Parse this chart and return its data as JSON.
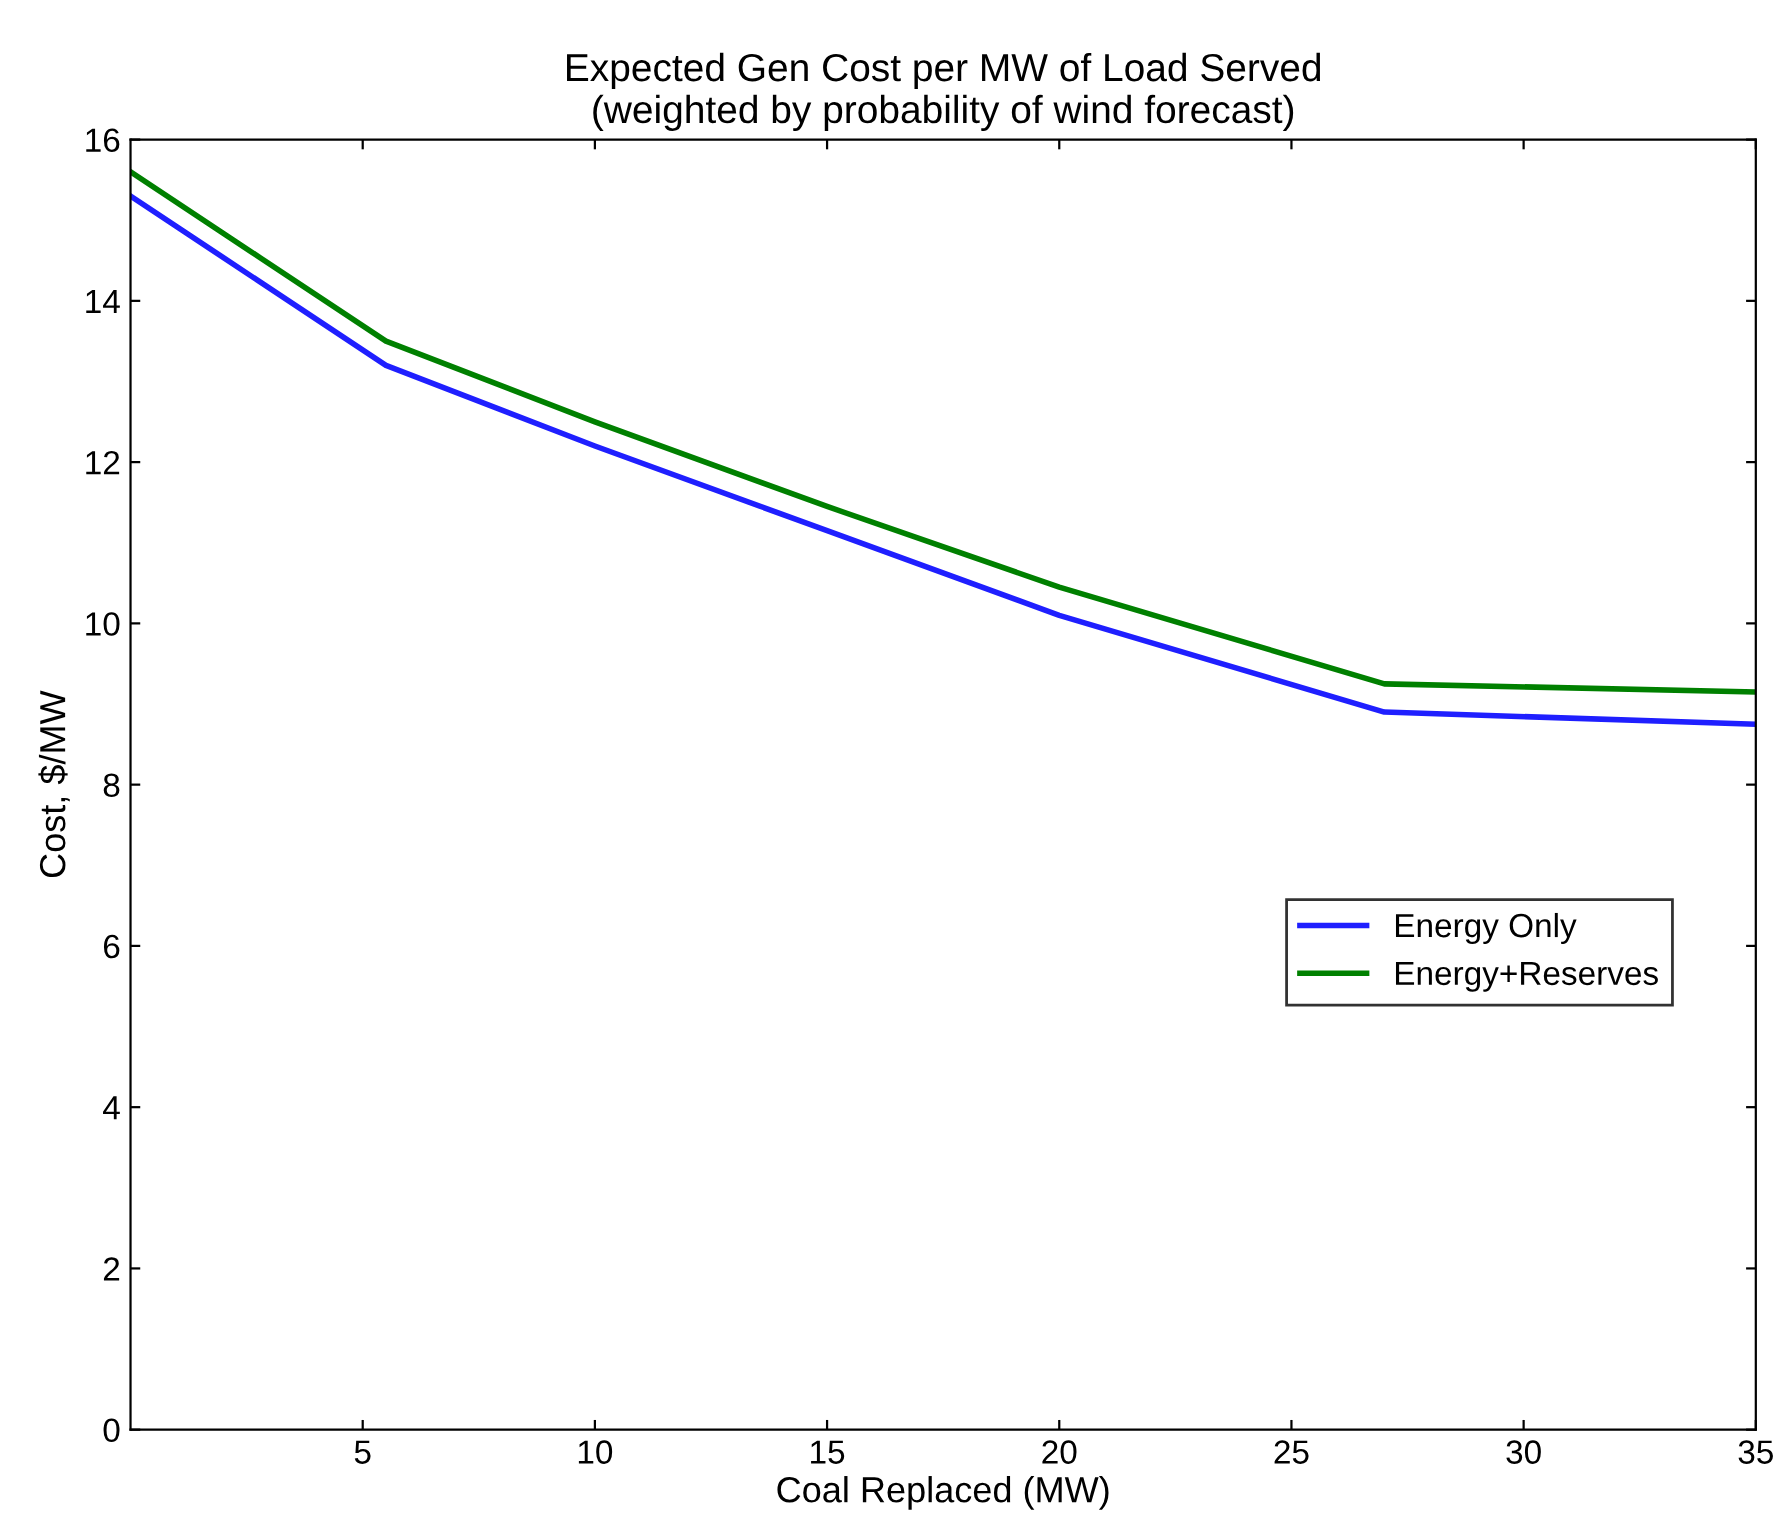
{
  "chart_data": {
    "type": "line",
    "title": "Expected Gen Cost per MW of Load Served\n(weighted by probability of wind forecast)",
    "xlabel": "Coal Replaced (MW)",
    "ylabel": "Cost, $/MW",
    "x": [
      0,
      5.5,
      10,
      15,
      20,
      27,
      35
    ],
    "series": [
      {
        "name": "Energy Only",
        "color": "#1f1fff",
        "values": [
          15.3,
          13.2,
          12.2,
          11.15,
          10.1,
          8.9,
          8.75
        ]
      },
      {
        "name": "Energy+Reserves",
        "color": "#008000",
        "values": [
          15.6,
          13.5,
          12.5,
          11.45,
          10.45,
          9.25,
          9.15
        ]
      }
    ],
    "xlim": [
      0,
      35
    ],
    "xticks": [
      5,
      10,
      15,
      20,
      25,
      30,
      35
    ],
    "ylim": [
      0,
      16
    ],
    "yticks": [
      0,
      2,
      4,
      6,
      8,
      10,
      12,
      14,
      16
    ],
    "grid": false,
    "legend": "center right",
    "line_style": "solid",
    "marker": "none"
  }
}
